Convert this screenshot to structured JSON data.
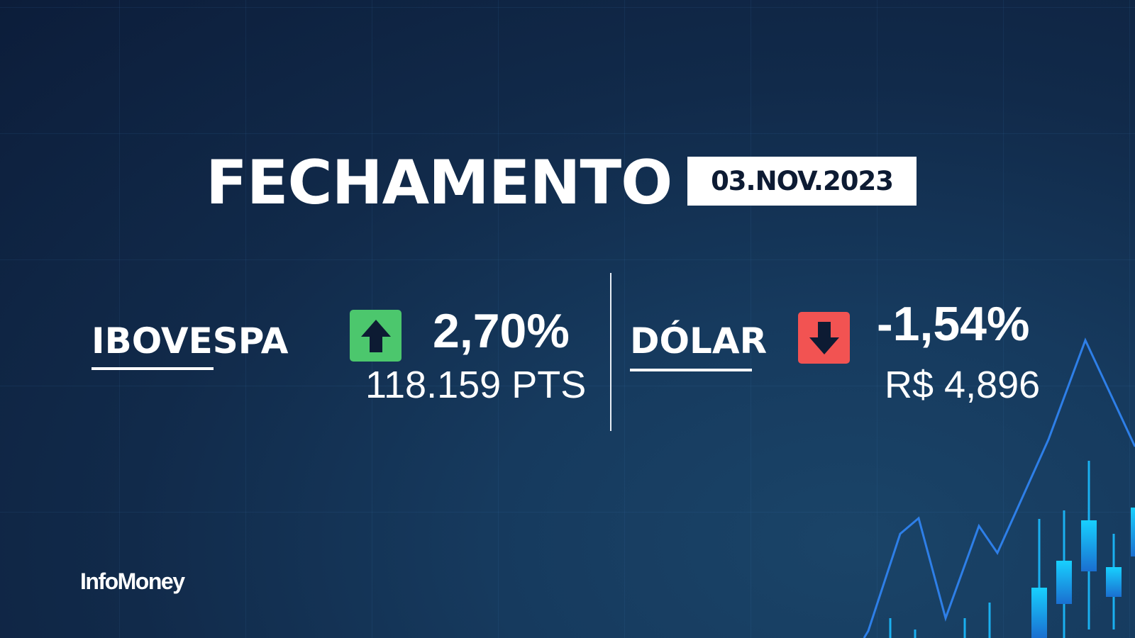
{
  "header": {
    "title": "FECHAMENTO",
    "date": "03.NOV.2023"
  },
  "ibovespa": {
    "label": "IBOVESPA",
    "direction": "up",
    "change": "2,70%",
    "value": "118.159 PTS",
    "color": "#4cc76d"
  },
  "dolar": {
    "label": "DÓLAR",
    "direction": "down",
    "change": "-1,54%",
    "value": "R$ 4,896",
    "color": "#f25352"
  },
  "brand": {
    "logo": "InfoMoney"
  },
  "colors": {
    "background": "#112a4a",
    "chart_line": "#2e7fe8",
    "candle": "#1ab0f0",
    "arrow": "#0d1b33"
  }
}
